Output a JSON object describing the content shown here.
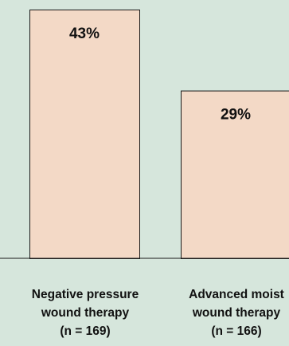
{
  "chart_data": {
    "type": "bar",
    "categories": [
      [
        "Negative pressure",
        "wound therapy",
        "(n = 169)"
      ],
      [
        "Advanced moist",
        "wound therapy",
        "(n = 166)"
      ]
    ],
    "values": [
      43,
      29
    ],
    "data_labels": [
      "43%",
      "29%"
    ],
    "ylim": [
      0,
      43
    ],
    "grid": false,
    "colors": {
      "bar_fill": "#f3d9c6",
      "bar_stroke": "#1a1a1a",
      "background": "#d6e6dc"
    }
  }
}
